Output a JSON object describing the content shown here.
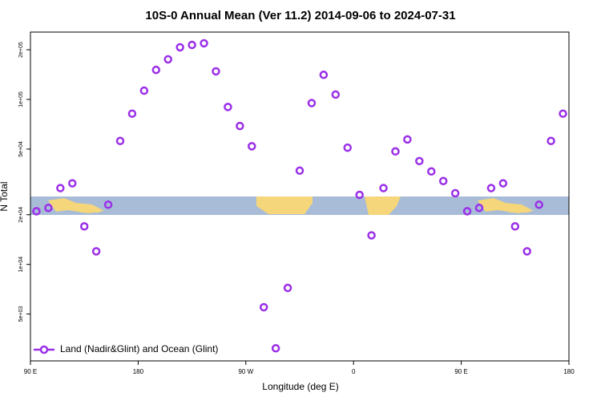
{
  "chart_data": {
    "type": "scatter",
    "title": "10S-0 Annual Mean (Ver 11.2)   2014-09-06 to 2024-07-31",
    "xlabel": "Longitude (deg E)",
    "ylabel": "N Total",
    "log_y": true,
    "legend": "lower left",
    "xlim": [
      90,
      540
    ],
    "xticks": [
      {
        "value": 90,
        "label": "90 E"
      },
      {
        "value": 180,
        "label": "180"
      },
      {
        "value": 270,
        "label": "90 W"
      },
      {
        "value": 360,
        "label": "0"
      },
      {
        "value": 450,
        "label": "90 E"
      },
      {
        "value": 540,
        "label": "180"
      }
    ],
    "ylim": [
      2600,
      256000
    ],
    "yticks": [
      {
        "value": 5000,
        "label": "5e+03"
      },
      {
        "value": 10000,
        "label": "1e+04"
      },
      {
        "value": 20000,
        "label": "2e+04"
      },
      {
        "value": 50000,
        "label": "5e+04"
      },
      {
        "value": 100000,
        "label": "1e+05"
      },
      {
        "value": 200000,
        "label": "2e+05"
      }
    ],
    "series": [
      {
        "name": "Land (Nadir&Glint) and Ocean (Glint)",
        "color": "#9b30e8",
        "x": [
          95,
          105,
          115,
          125,
          135,
          145,
          155,
          165,
          175,
          185,
          195,
          205,
          215,
          225,
          235,
          245,
          255,
          265,
          275,
          285,
          295,
          305,
          315,
          325,
          335,
          345,
          355,
          365,
          375,
          385,
          395,
          405,
          415,
          425,
          435,
          445,
          455,
          465,
          475,
          485,
          495,
          505,
          515,
          525,
          535
        ],
        "values": [
          21000,
          22000,
          29000,
          31000,
          17000,
          12000,
          23000,
          56000,
          82000,
          113000,
          151000,
          175000,
          207000,
          214000,
          219000,
          148000,
          90000,
          69000,
          52000,
          5500,
          3100,
          7200,
          37000,
          95000,
          141000,
          107000,
          51000,
          26400,
          15000,
          29000,
          48400,
          57200,
          42300,
          36600,
          32000,
          27000,
          21000,
          22000,
          29000,
          31000,
          17000,
          12000,
          23000,
          56000,
          82000
        ]
      }
    ]
  }
}
